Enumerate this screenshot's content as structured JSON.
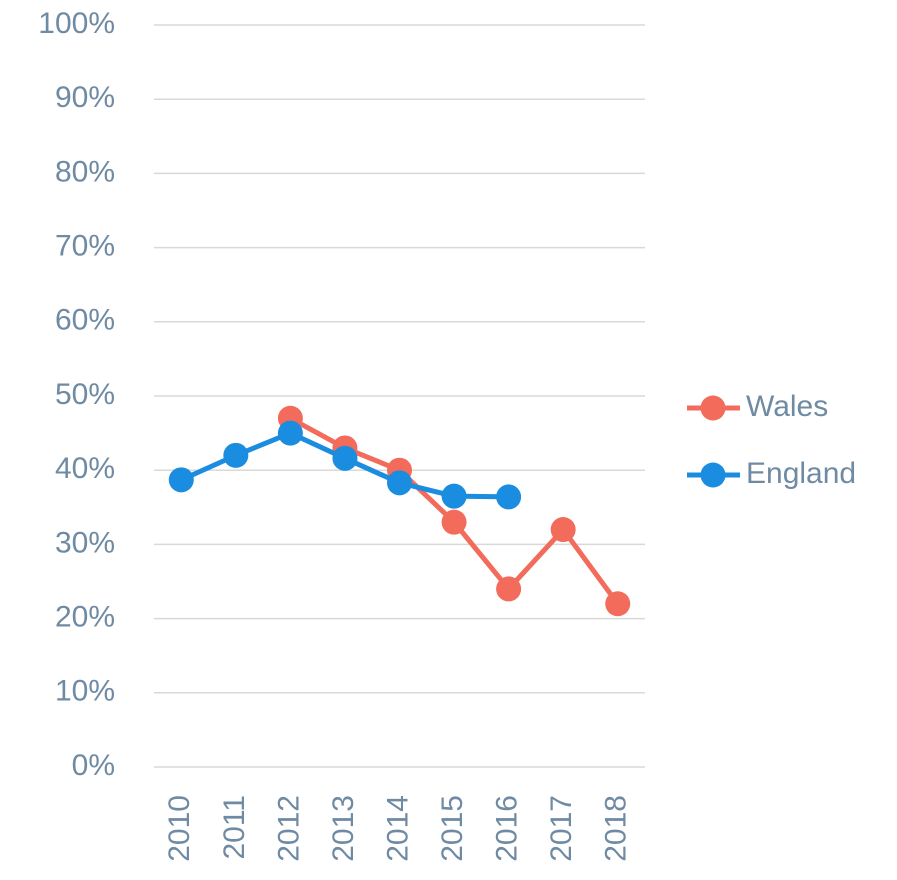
{
  "chart_data": {
    "type": "line",
    "categories": [
      "2010",
      "2011",
      "2012",
      "2013",
      "2014",
      "2015",
      "2016",
      "2017",
      "2018"
    ],
    "series": [
      {
        "name": "Wales",
        "color": "#f26b5b",
        "values": [
          null,
          null,
          47,
          43,
          40,
          33,
          24,
          32,
          22
        ]
      },
      {
        "name": "England",
        "color": "#1a8de0",
        "values": [
          38.7,
          42,
          45,
          41.6,
          38.3,
          36.5,
          36.4,
          null,
          null
        ]
      }
    ],
    "ylim": [
      0,
      100
    ],
    "yticks": [
      {
        "value": 0,
        "label": "0%"
      },
      {
        "value": 10,
        "label": "10%"
      },
      {
        "value": 20,
        "label": "20%"
      },
      {
        "value": 30,
        "label": "30%"
      },
      {
        "value": 40,
        "label": "40%"
      },
      {
        "value": 50,
        "label": "50%"
      },
      {
        "value": 60,
        "label": "60%"
      },
      {
        "value": 70,
        "label": "70%"
      },
      {
        "value": 80,
        "label": "80%"
      },
      {
        "value": 90,
        "label": "90%"
      },
      {
        "value": 100,
        "label": "100%"
      }
    ],
    "grid": true,
    "legend": "right"
  }
}
